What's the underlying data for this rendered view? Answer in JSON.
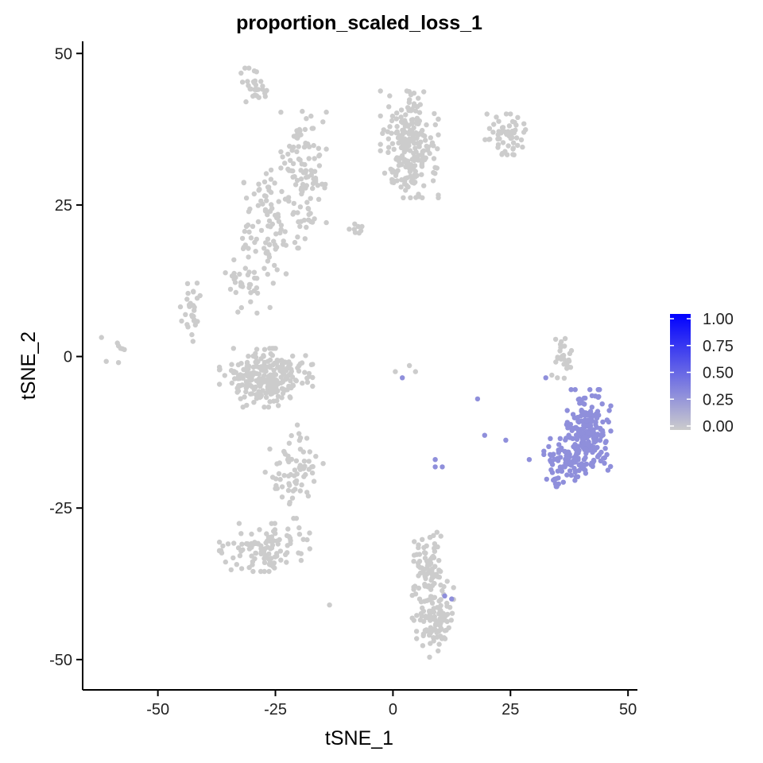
{
  "chart_data": {
    "type": "scatter",
    "title": "proportion_scaled_loss_1",
    "xlabel": "tSNE_1",
    "ylabel": "tSNE_2",
    "xlim": [
      -66,
      52
    ],
    "ylim": [
      -55,
      52
    ],
    "x_ticks": [
      -50,
      -25,
      0,
      25,
      50
    ],
    "y_ticks": [
      -50,
      -25,
      0,
      25,
      50
    ],
    "x_tick_labels": [
      "-50",
      "-25",
      "0",
      "25",
      "50"
    ],
    "y_tick_labels": [
      "-50",
      "-25",
      "0",
      "25",
      "50"
    ],
    "grid": false,
    "legend_position": "right",
    "color_scale": {
      "low_color": "#cccccc",
      "high_color": "#0000ff",
      "min": 0,
      "max": 1,
      "ticks": [
        1.0,
        0.75,
        0.5,
        0.25,
        0.0
      ],
      "tick_labels": [
        "1.00",
        "0.75",
        "0.50",
        "0.25",
        "0.00"
      ]
    },
    "clusters": [
      {
        "cx": -29,
        "cy": 44.5,
        "sx": 1.6,
        "sy": 1.4,
        "n": 28,
        "value": 0
      },
      {
        "cx": -26,
        "cy": 22,
        "sx": 2.6,
        "sy": 4.5,
        "n": 80,
        "value": 0
      },
      {
        "cx": -19,
        "cy": 30,
        "sx": 2.2,
        "sy": 5.5,
        "n": 110,
        "value": 0
      },
      {
        "cx": -31,
        "cy": 14,
        "sx": 2.2,
        "sy": 3.5,
        "n": 45,
        "value": 0
      },
      {
        "cx": -43,
        "cy": 8,
        "sx": 1.0,
        "sy": 2.5,
        "n": 28,
        "value": 0
      },
      {
        "cx": -59,
        "cy": 0.5,
        "sx": 1.4,
        "sy": 1.2,
        "n": 8,
        "value": 0
      },
      {
        "cx": -8,
        "cy": 21,
        "sx": 0.8,
        "sy": 0.4,
        "n": 8,
        "value": 0
      },
      {
        "cx": 3.5,
        "cy": 35,
        "sx": 2.8,
        "sy": 4.0,
        "n": 230,
        "value": 0
      },
      {
        "cx": 24,
        "cy": 36.5,
        "sx": 2.0,
        "sy": 1.6,
        "n": 55,
        "value": 0
      },
      {
        "cx": -27,
        "cy": -3.5,
        "sx": 4.5,
        "sy": 2.2,
        "n": 260,
        "value": 0
      },
      {
        "cx": -21,
        "cy": -19,
        "sx": 2.8,
        "sy": 3.5,
        "n": 70,
        "value": 0
      },
      {
        "cx": -27,
        "cy": -31.5,
        "sx": 4.5,
        "sy": 1.8,
        "n": 110,
        "value": 0
      },
      {
        "cx": 7.5,
        "cy": -34.5,
        "sx": 1.4,
        "sy": 2.5,
        "n": 70,
        "value": 0
      },
      {
        "cx": 8.5,
        "cy": -43,
        "sx": 2.0,
        "sy": 3.0,
        "n": 120,
        "value": 0
      },
      {
        "cx": 36,
        "cy": -1,
        "sx": 1.0,
        "sy": 1.8,
        "n": 30,
        "value": 0
      },
      {
        "cx": 41.5,
        "cy": -12.5,
        "sx": 2.2,
        "sy": 3.2,
        "n": 200,
        "value": 0.3
      },
      {
        "cx": 36.5,
        "cy": -17.5,
        "sx": 2.0,
        "sy": 1.8,
        "n": 80,
        "value": 0.3
      }
    ],
    "outliers": [
      {
        "x": -13.5,
        "y": -41,
        "value": 0
      },
      {
        "x": 0.5,
        "y": -2.5,
        "value": 0
      },
      {
        "x": 2.0,
        "y": -3.5,
        "value": 0.3
      },
      {
        "x": 3.5,
        "y": -1.5,
        "value": 0
      },
      {
        "x": 4.8,
        "y": -2.5,
        "value": 0
      },
      {
        "x": 9.0,
        "y": -17.0,
        "value": 0.3
      },
      {
        "x": 9.0,
        "y": -18.2,
        "value": 0.3
      },
      {
        "x": 10.5,
        "y": -18.2,
        "value": 0.3
      },
      {
        "x": 18.0,
        "y": -7.0,
        "value": 0.3
      },
      {
        "x": 19.5,
        "y": -13.0,
        "value": 0.3
      },
      {
        "x": 24.0,
        "y": -13.8,
        "value": 0.3
      },
      {
        "x": 29.0,
        "y": -17.0,
        "value": 0.3
      },
      {
        "x": 32.5,
        "y": -3.5,
        "value": 0.3
      },
      {
        "x": 12.5,
        "y": -40.0,
        "value": 0.3
      },
      {
        "x": 11.0,
        "y": -39.5,
        "value": 0.3
      },
      {
        "x": 20.0,
        "y": 40.0,
        "value": 0
      },
      {
        "x": 22.0,
        "y": 39.5,
        "value": 0
      }
    ]
  }
}
